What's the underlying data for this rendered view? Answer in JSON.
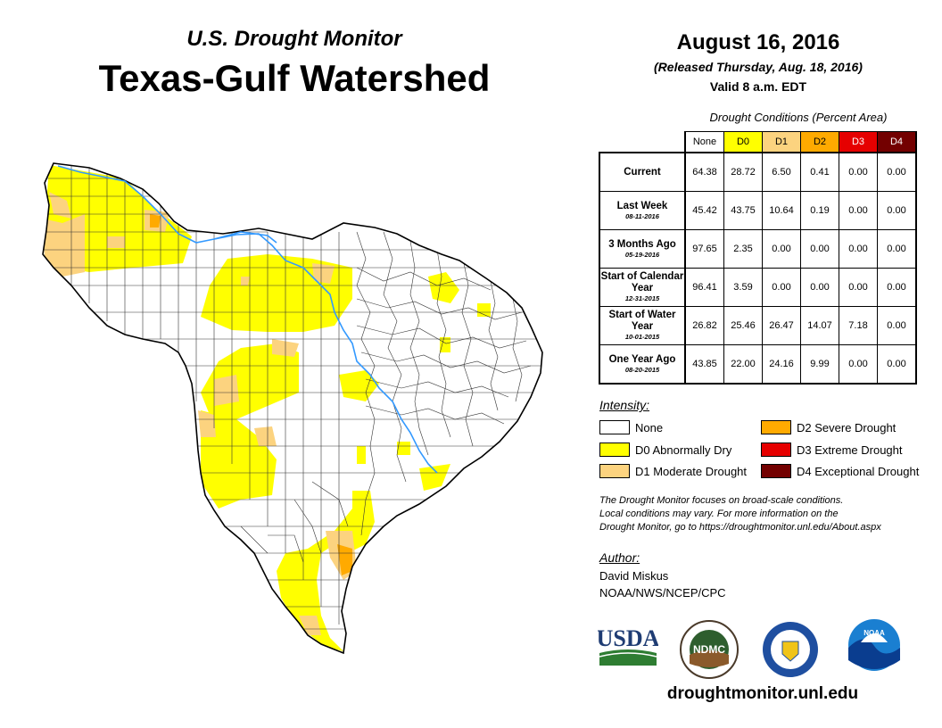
{
  "header": {
    "subtitle": "U.S. Drought Monitor",
    "title": "Texas-Gulf Watershed",
    "date": "August 16, 2016",
    "released": "(Released Thursday, Aug. 18, 2016)",
    "valid": "Valid 8 a.m. EDT"
  },
  "table": {
    "caption": "Drought Conditions (Percent Area)",
    "columns": [
      {
        "label": "None",
        "color": "#ffffff",
        "text_color": "#000000"
      },
      {
        "label": "D0",
        "color": "#ffff00",
        "text_color": "#000000"
      },
      {
        "label": "D1",
        "color": "#fcd37f",
        "text_color": "#000000"
      },
      {
        "label": "D2",
        "color": "#ffaa00",
        "text_color": "#000000"
      },
      {
        "label": "D3",
        "color": "#e60000",
        "text_color": "#ffffff"
      },
      {
        "label": "D4",
        "color": "#730000",
        "text_color": "#ffffff"
      }
    ],
    "rows": [
      {
        "label": "Current",
        "date": "",
        "values": [
          "64.38",
          "28.72",
          "6.50",
          "0.41",
          "0.00",
          "0.00"
        ]
      },
      {
        "label": "Last Week",
        "date": "08-11-2016",
        "values": [
          "45.42",
          "43.75",
          "10.64",
          "0.19",
          "0.00",
          "0.00"
        ]
      },
      {
        "label": "3 Months Ago",
        "date": "05-19-2016",
        "values": [
          "97.65",
          "2.35",
          "0.00",
          "0.00",
          "0.00",
          "0.00"
        ]
      },
      {
        "label": "Start of Calendar Year",
        "date": "12-31-2015",
        "values": [
          "96.41",
          "3.59",
          "0.00",
          "0.00",
          "0.00",
          "0.00"
        ]
      },
      {
        "label": "Start of Water Year",
        "date": "10-01-2015",
        "values": [
          "26.82",
          "25.46",
          "26.47",
          "14.07",
          "7.18",
          "0.00"
        ]
      },
      {
        "label": "One Year Ago",
        "date": "08-20-2015",
        "values": [
          "43.85",
          "22.00",
          "24.16",
          "9.99",
          "0.00",
          "0.00"
        ]
      }
    ]
  },
  "legend": {
    "title": "Intensity:",
    "items": [
      {
        "label": "None",
        "color": "#ffffff"
      },
      {
        "label": "D0 Abnormally Dry",
        "color": "#ffff00"
      },
      {
        "label": "D1 Moderate Drought",
        "color": "#fcd37f"
      },
      {
        "label": "D2 Severe Drought",
        "color": "#ffaa00"
      },
      {
        "label": "D3 Extreme Drought",
        "color": "#e60000"
      },
      {
        "label": "D4 Exceptional Drought",
        "color": "#730000"
      }
    ]
  },
  "note": {
    "line1": "The Drought Monitor focuses on broad-scale conditions.",
    "line2": "Local conditions may vary. For more information on the",
    "line3": "Drought Monitor, go to https://droughtmonitor.unl.edu/About.aspx"
  },
  "author": {
    "label": "Author:",
    "name": "David Miskus",
    "org": "NOAA/NWS/NCEP/CPC"
  },
  "logos": {
    "usda": "USDA",
    "ndmc": "NDMC",
    "noaa": "NOAA"
  },
  "website": "droughtmonitor.unl.edu",
  "colors": {
    "river": "#3399ff",
    "county_line": "#333333",
    "d0": "#ffff00",
    "d1": "#fcd37f",
    "d2": "#ffaa00"
  }
}
